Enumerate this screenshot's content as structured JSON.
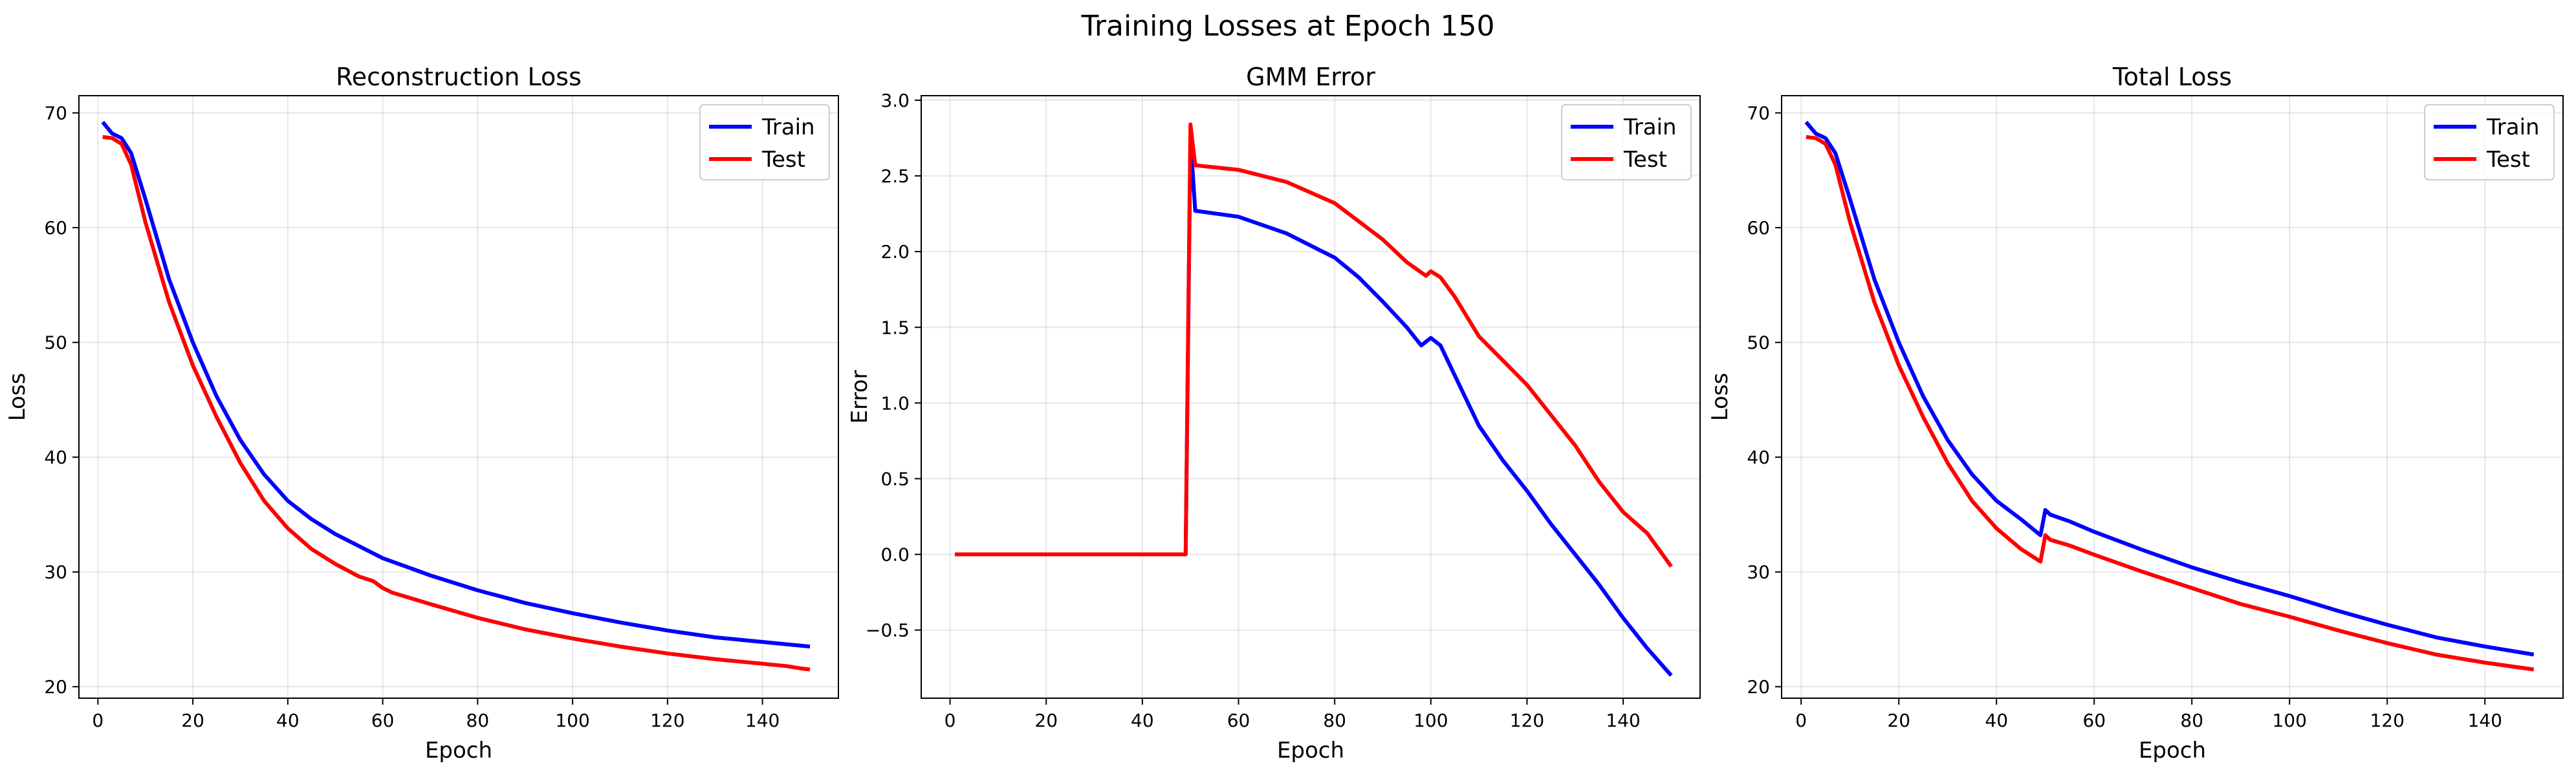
{
  "figure": {
    "title": "Training Losses at Epoch 150"
  },
  "chart_data": [
    {
      "type": "line",
      "title": "Reconstruction Loss",
      "xlabel": "Epoch",
      "ylabel": "Loss",
      "xlim": [
        -4,
        156
      ],
      "ylim": [
        19,
        71.5
      ],
      "xticks": [
        0,
        20,
        40,
        60,
        80,
        100,
        120,
        140
      ],
      "yticks": [
        20,
        30,
        40,
        50,
        60,
        70
      ],
      "grid": true,
      "legend": "top-right",
      "series": [
        {
          "name": "Train",
          "color": "#0000ff",
          "x": [
            1,
            3,
            5,
            7,
            10,
            15,
            20,
            25,
            30,
            35,
            40,
            45,
            50,
            60,
            70,
            80,
            90,
            100,
            110,
            120,
            130,
            140,
            150
          ],
          "y": [
            69.2,
            68.2,
            67.8,
            66.5,
            62.5,
            55.5,
            50.0,
            45.3,
            41.5,
            38.5,
            36.2,
            34.6,
            33.3,
            31.2,
            29.7,
            28.4,
            27.3,
            26.4,
            25.6,
            24.9,
            24.3,
            23.9,
            23.5
          ]
        },
        {
          "name": "Test",
          "color": "#ff0000",
          "x": [
            1,
            3,
            5,
            7,
            10,
            15,
            20,
            25,
            30,
            35,
            40,
            45,
            50,
            55,
            58,
            60,
            62,
            70,
            80,
            90,
            100,
            110,
            120,
            130,
            140,
            145,
            148,
            150
          ],
          "y": [
            67.9,
            67.8,
            67.3,
            65.5,
            60.5,
            53.5,
            48.0,
            43.5,
            39.5,
            36.2,
            33.8,
            32.0,
            30.7,
            29.6,
            29.2,
            28.6,
            28.2,
            27.2,
            26.0,
            25.0,
            24.2,
            23.5,
            22.9,
            22.4,
            22.0,
            21.8,
            21.6,
            21.5
          ]
        }
      ]
    },
    {
      "type": "line",
      "title": "GMM Error",
      "xlabel": "Epoch",
      "ylabel": "Error",
      "xlim": [
        -6,
        156
      ],
      "ylim": [
        -0.95,
        3.03
      ],
      "xticks": [
        0,
        20,
        40,
        60,
        80,
        100,
        120,
        140
      ],
      "yticks": [
        -0.5,
        0.0,
        0.5,
        1.0,
        1.5,
        2.0,
        2.5,
        3.0
      ],
      "ytick_labels": [
        "−0.5",
        "0.0",
        "0.5",
        "1.0",
        "1.5",
        "2.0",
        "2.5",
        "3.0"
      ],
      "grid": true,
      "legend": "top-right",
      "series": [
        {
          "name": "Train",
          "color": "#0000ff",
          "x": [
            1,
            49,
            50,
            51,
            60,
            70,
            80,
            85,
            90,
            95,
            98,
            100,
            102,
            105,
            110,
            115,
            120,
            125,
            130,
            133,
            135,
            140,
            145,
            150
          ],
          "y": [
            0.0,
            0.0,
            2.75,
            2.27,
            2.23,
            2.12,
            1.96,
            1.83,
            1.67,
            1.5,
            1.38,
            1.43,
            1.38,
            1.18,
            0.85,
            0.62,
            0.42,
            0.2,
            0.0,
            -0.12,
            -0.2,
            -0.42,
            -0.62,
            -0.8
          ]
        },
        {
          "name": "Test",
          "color": "#ff0000",
          "x": [
            1,
            49,
            50,
            51,
            60,
            70,
            80,
            85,
            90,
            95,
            99,
            100,
            102,
            105,
            110,
            115,
            120,
            125,
            130,
            135,
            140,
            145,
            150
          ],
          "y": [
            0.0,
            0.0,
            2.84,
            2.57,
            2.54,
            2.46,
            2.32,
            2.2,
            2.08,
            1.93,
            1.84,
            1.87,
            1.83,
            1.7,
            1.44,
            1.28,
            1.12,
            0.92,
            0.72,
            0.48,
            0.28,
            0.14,
            -0.08
          ]
        }
      ]
    },
    {
      "type": "line",
      "title": "Total Loss",
      "xlabel": "Epoch",
      "ylabel": "Loss",
      "xlim": [
        -4,
        156
      ],
      "ylim": [
        19,
        71.5
      ],
      "xticks": [
        0,
        20,
        40,
        60,
        80,
        100,
        120,
        140
      ],
      "yticks": [
        20,
        30,
        40,
        50,
        60,
        70
      ],
      "grid": true,
      "legend": "top-right",
      "series": [
        {
          "name": "Train",
          "color": "#0000ff",
          "x": [
            1,
            3,
            5,
            7,
            10,
            15,
            20,
            25,
            30,
            35,
            40,
            45,
            49,
            50,
            51,
            55,
            60,
            70,
            80,
            90,
            100,
            110,
            120,
            130,
            140,
            150
          ],
          "y": [
            69.2,
            68.2,
            67.8,
            66.5,
            62.5,
            55.5,
            50.0,
            45.3,
            41.5,
            38.5,
            36.2,
            34.6,
            33.2,
            35.4,
            35.0,
            34.4,
            33.5,
            31.9,
            30.4,
            29.1,
            27.9,
            26.6,
            25.4,
            24.3,
            23.5,
            22.8
          ]
        },
        {
          "name": "Test",
          "color": "#ff0000",
          "x": [
            1,
            3,
            5,
            7,
            10,
            15,
            20,
            25,
            30,
            35,
            40,
            45,
            49,
            50,
            51,
            55,
            60,
            70,
            80,
            90,
            100,
            110,
            120,
            130,
            140,
            150
          ],
          "y": [
            67.9,
            67.8,
            67.3,
            65.5,
            60.5,
            53.5,
            48.0,
            43.5,
            39.5,
            36.2,
            33.8,
            32.0,
            30.9,
            33.2,
            32.8,
            32.3,
            31.5,
            30.0,
            28.6,
            27.2,
            26.1,
            24.9,
            23.8,
            22.8,
            22.1,
            21.5
          ]
        }
      ]
    }
  ]
}
